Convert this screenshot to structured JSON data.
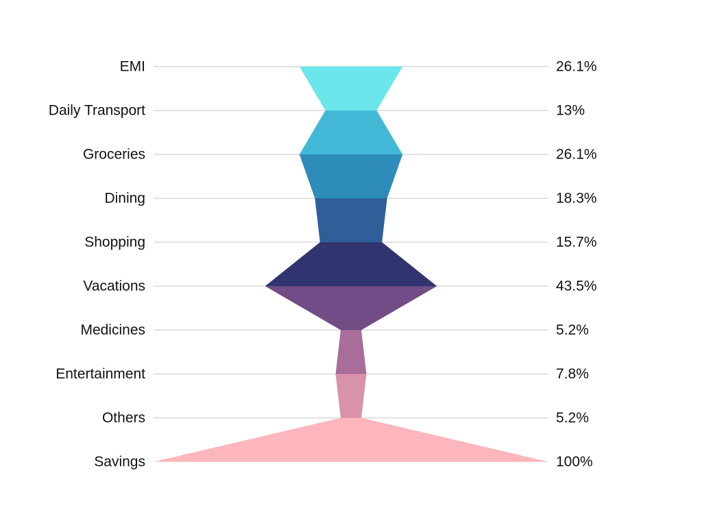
{
  "chart_data": {
    "type": "funnel",
    "title": "",
    "categories": [
      "EMI",
      "Daily Transport",
      "Groceries",
      "Dining",
      "Shopping",
      "Vacations",
      "Medicines",
      "Entertainment",
      "Others",
      "Savings"
    ],
    "values": [
      26.1,
      13,
      26.1,
      18.3,
      15.7,
      43.5,
      5.2,
      7.8,
      5.2,
      100
    ],
    "value_labels": [
      "26.1%",
      "13%",
      "26.1%",
      "18.3%",
      "15.7%",
      "43.5%",
      "5.2%",
      "7.8%",
      "5.2%",
      "100%"
    ],
    "value_max": 100,
    "colors": [
      "#6be6ea",
      "#43b8d6",
      "#2d8cba",
      "#2e5f99",
      "#31346e",
      "#714c86",
      "#a86d98",
      "#d892aa",
      "#fdb6bb"
    ],
    "gridlines": true,
    "grid_color": "#d9d9d9"
  }
}
